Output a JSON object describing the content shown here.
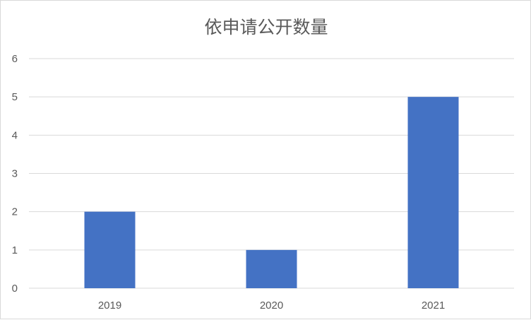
{
  "chart_data": {
    "type": "bar",
    "title": "依申请公开数量",
    "categories": [
      "2019",
      "2020",
      "2021"
    ],
    "values": [
      2,
      1,
      5
    ],
    "xlabel": "",
    "ylabel": "",
    "ylim": [
      0,
      6
    ],
    "yticks": [
      "0",
      "1",
      "2",
      "3",
      "4",
      "5",
      "6"
    ],
    "grid": true,
    "legend": "none",
    "bar_color": "#4472c4",
    "grid_color": "#d9d9d9"
  }
}
